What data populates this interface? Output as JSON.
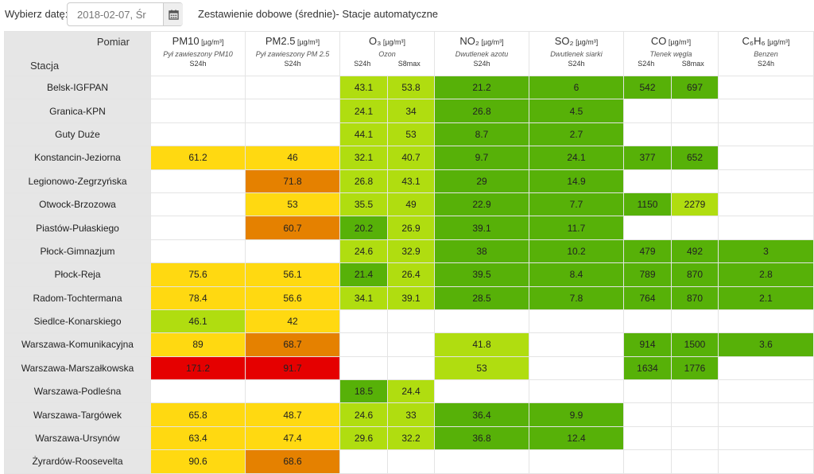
{
  "date_picker": {
    "label": "Wybierz datę:",
    "value": "2018-02-07, Śr"
  },
  "title": "Zestawienie dobowe (średnie)- Stacje automatyczne",
  "header": {
    "pomiar": "Pomiar",
    "stacja": "Stacja"
  },
  "pollutants": [
    {
      "name": "PM10",
      "unit": "[µg/m³]",
      "desc": "Pył zawieszony PM10",
      "subs": [
        "S24h"
      ]
    },
    {
      "name": "PM2.5",
      "unit": "[µg/m³]",
      "desc": "Pył zawieszony PM 2.5",
      "subs": [
        "S24h"
      ]
    },
    {
      "name": "O₃",
      "unit": "[µg/m³]",
      "desc": "Ozon",
      "subs": [
        "S24h",
        "S8max"
      ]
    },
    {
      "name": "NO₂",
      "unit": "[µg/m³]",
      "desc": "Dwutlenek azotu",
      "subs": [
        "S24h"
      ]
    },
    {
      "name": "SO₂",
      "unit": "[µg/m³]",
      "desc": "Dwutlenek siarki",
      "subs": [
        "S24h"
      ]
    },
    {
      "name": "CO",
      "unit": "[µg/m³]",
      "desc": "Tlenek węgla",
      "subs": [
        "S24h",
        "S8max"
      ]
    },
    {
      "name": "C₆H₆",
      "unit": "[µg/m³]",
      "desc": "Benzen",
      "subs": [
        "S24h"
      ]
    }
  ],
  "legend_colors": {
    "vgood": "#57b108",
    "good": "#b0dd10",
    "mod": "#ffd911",
    "suff": "#e58100",
    "bad": "#e50000"
  },
  "rows": [
    {
      "station": "Belsk-IGFPAN",
      "cells": [
        [
          "",
          ""
        ],
        [
          "",
          ""
        ],
        [
          "43.1",
          "good"
        ],
        [
          "53.8",
          "good"
        ],
        [
          "21.2",
          "vgood"
        ],
        [
          "6",
          "vgood"
        ],
        [
          "542",
          "vgood"
        ],
        [
          "697",
          "vgood"
        ],
        [
          "",
          ""
        ]
      ]
    },
    {
      "station": "Granica-KPN",
      "cells": [
        [
          "",
          ""
        ],
        [
          "",
          ""
        ],
        [
          "24.1",
          "good"
        ],
        [
          "34",
          "good"
        ],
        [
          "26.8",
          "vgood"
        ],
        [
          "4.5",
          "vgood"
        ],
        [
          "",
          ""
        ],
        [
          "",
          ""
        ],
        [
          "",
          ""
        ]
      ]
    },
    {
      "station": "Guty Duże",
      "cells": [
        [
          "",
          ""
        ],
        [
          "",
          ""
        ],
        [
          "44.1",
          "good"
        ],
        [
          "53",
          "good"
        ],
        [
          "8.7",
          "vgood"
        ],
        [
          "2.7",
          "vgood"
        ],
        [
          "",
          ""
        ],
        [
          "",
          ""
        ],
        [
          "",
          ""
        ]
      ]
    },
    {
      "station": "Konstancin-Jeziorna",
      "cells": [
        [
          "61.2",
          "mod"
        ],
        [
          "46",
          "mod"
        ],
        [
          "32.1",
          "good"
        ],
        [
          "40.7",
          "good"
        ],
        [
          "9.7",
          "vgood"
        ],
        [
          "24.1",
          "vgood"
        ],
        [
          "377",
          "vgood"
        ],
        [
          "652",
          "vgood"
        ],
        [
          "",
          ""
        ]
      ]
    },
    {
      "station": "Legionowo-Zegrzyńska",
      "cells": [
        [
          "",
          ""
        ],
        [
          "71.8",
          "suff"
        ],
        [
          "26.8",
          "good"
        ],
        [
          "43.1",
          "good"
        ],
        [
          "29",
          "vgood"
        ],
        [
          "14.9",
          "vgood"
        ],
        [
          "",
          ""
        ],
        [
          "",
          ""
        ],
        [
          "",
          ""
        ]
      ]
    },
    {
      "station": "Otwock-Brzozowa",
      "cells": [
        [
          "",
          ""
        ],
        [
          "53",
          "mod"
        ],
        [
          "35.5",
          "good"
        ],
        [
          "49",
          "good"
        ],
        [
          "22.9",
          "vgood"
        ],
        [
          "7.7",
          "vgood"
        ],
        [
          "1150",
          "vgood"
        ],
        [
          "2279",
          "good"
        ],
        [
          "",
          ""
        ]
      ]
    },
    {
      "station": "Piastów-Pułaskiego",
      "cells": [
        [
          "",
          ""
        ],
        [
          "60.7",
          "suff"
        ],
        [
          "20.2",
          "vgood"
        ],
        [
          "26.9",
          "good"
        ],
        [
          "39.1",
          "vgood"
        ],
        [
          "11.7",
          "vgood"
        ],
        [
          "",
          ""
        ],
        [
          "",
          ""
        ],
        [
          "",
          ""
        ]
      ]
    },
    {
      "station": "Płock-Gimnazjum",
      "cells": [
        [
          "",
          ""
        ],
        [
          "",
          ""
        ],
        [
          "24.6",
          "good"
        ],
        [
          "32.9",
          "good"
        ],
        [
          "38",
          "vgood"
        ],
        [
          "10.2",
          "vgood"
        ],
        [
          "479",
          "vgood"
        ],
        [
          "492",
          "vgood"
        ],
        [
          "3",
          "vgood"
        ]
      ]
    },
    {
      "station": "Płock-Reja",
      "cells": [
        [
          "75.6",
          "mod"
        ],
        [
          "56.1",
          "mod"
        ],
        [
          "21.4",
          "vgood"
        ],
        [
          "26.4",
          "good"
        ],
        [
          "39.5",
          "vgood"
        ],
        [
          "8.4",
          "vgood"
        ],
        [
          "789",
          "vgood"
        ],
        [
          "870",
          "vgood"
        ],
        [
          "2.8",
          "vgood"
        ]
      ]
    },
    {
      "station": "Radom-Tochtermana",
      "cells": [
        [
          "78.4",
          "mod"
        ],
        [
          "56.6",
          "mod"
        ],
        [
          "34.1",
          "good"
        ],
        [
          "39.1",
          "good"
        ],
        [
          "28.5",
          "vgood"
        ],
        [
          "7.8",
          "vgood"
        ],
        [
          "764",
          "vgood"
        ],
        [
          "870",
          "vgood"
        ],
        [
          "2.1",
          "vgood"
        ]
      ]
    },
    {
      "station": "Siedlce-Konarskiego",
      "cells": [
        [
          "46.1",
          "good"
        ],
        [
          "42",
          "mod"
        ],
        [
          "",
          ""
        ],
        [
          "",
          ""
        ],
        [
          "",
          ""
        ],
        [
          "",
          ""
        ],
        [
          "",
          ""
        ],
        [
          "",
          ""
        ],
        [
          "",
          ""
        ]
      ]
    },
    {
      "station": "Warszawa-Komunikacyjna",
      "cells": [
        [
          "89",
          "mod"
        ],
        [
          "68.7",
          "suff"
        ],
        [
          "",
          ""
        ],
        [
          "",
          ""
        ],
        [
          "41.8",
          "good"
        ],
        [
          "",
          ""
        ],
        [
          "914",
          "vgood"
        ],
        [
          "1500",
          "vgood"
        ],
        [
          "3.6",
          "vgood"
        ]
      ]
    },
    {
      "station": "Warszawa-Marszałkowska",
      "cells": [
        [
          "171.2",
          "bad"
        ],
        [
          "91.7",
          "bad"
        ],
        [
          "",
          ""
        ],
        [
          "",
          ""
        ],
        [
          "53",
          "good"
        ],
        [
          "",
          ""
        ],
        [
          "1634",
          "vgood"
        ],
        [
          "1776",
          "vgood"
        ],
        [
          "",
          ""
        ]
      ]
    },
    {
      "station": "Warszawa-Podleśna",
      "cells": [
        [
          "",
          ""
        ],
        [
          "",
          ""
        ],
        [
          "18.5",
          "vgood"
        ],
        [
          "24.4",
          "good"
        ],
        [
          "",
          ""
        ],
        [
          "",
          ""
        ],
        [
          "",
          ""
        ],
        [
          "",
          ""
        ],
        [
          "",
          ""
        ]
      ]
    },
    {
      "station": "Warszawa-Targówek",
      "cells": [
        [
          "65.8",
          "mod"
        ],
        [
          "48.7",
          "mod"
        ],
        [
          "24.6",
          "good"
        ],
        [
          "33",
          "good"
        ],
        [
          "36.4",
          "vgood"
        ],
        [
          "9.9",
          "vgood"
        ],
        [
          "",
          ""
        ],
        [
          "",
          ""
        ],
        [
          "",
          ""
        ]
      ]
    },
    {
      "station": "Warszawa-Ursynów",
      "cells": [
        [
          "63.4",
          "mod"
        ],
        [
          "47.4",
          "mod"
        ],
        [
          "29.6",
          "good"
        ],
        [
          "32.2",
          "good"
        ],
        [
          "36.8",
          "vgood"
        ],
        [
          "12.4",
          "vgood"
        ],
        [
          "",
          ""
        ],
        [
          "",
          ""
        ],
        [
          "",
          ""
        ]
      ]
    },
    {
      "station": "Żyrardów-Roosevelta",
      "cells": [
        [
          "90.6",
          "mod"
        ],
        [
          "68.6",
          "suff"
        ],
        [
          "",
          ""
        ],
        [
          "",
          ""
        ],
        [
          "",
          ""
        ],
        [
          "",
          ""
        ],
        [
          "",
          ""
        ],
        [
          "",
          ""
        ],
        [
          "",
          ""
        ]
      ]
    }
  ]
}
